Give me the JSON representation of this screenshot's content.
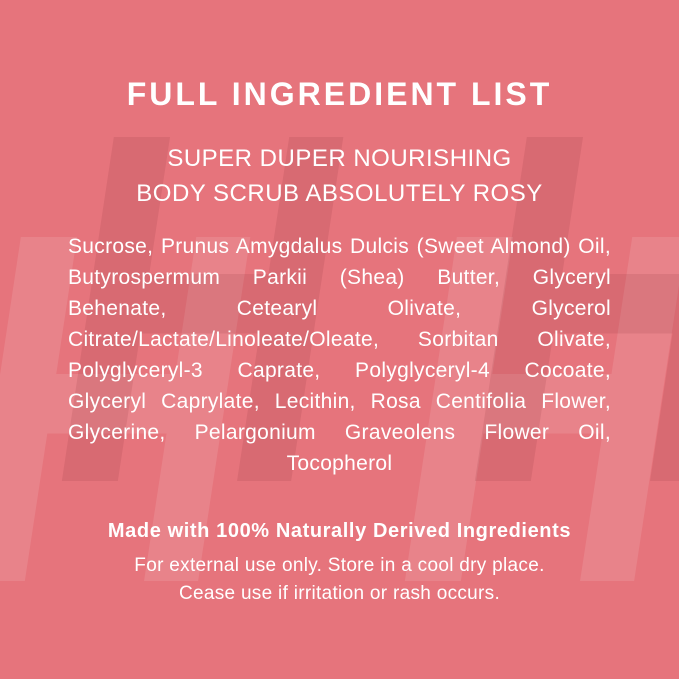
{
  "colors": {
    "background": "#e6747c",
    "text": "#ffffff",
    "watermark_dark": "rgba(95, 22, 32, 0.10)",
    "watermark_light": "rgba(255, 255, 255, 0.11)"
  },
  "watermark": {
    "letter": "H"
  },
  "header": {
    "title": "FULL INGREDIENT LIST",
    "subtitle_line1": "SUPER DUPER NOURISHING",
    "subtitle_line2": "BODY SCRUB ABSOLUTELY ROSY"
  },
  "ingredients": {
    "lines": [
      "Sucrose, Prunus Amygdalus Dulcis (Sweet Almond) Oil,",
      "Butyrospermum Parkii (Shea) Butter, Glyceryl",
      "Behenate, Cetearyl Olivate, Glycerol",
      "Citrate/Lactate/Linoleate/Oleate, Sorbitan Olivate,",
      "Polyglyceryl-3 Caprate, Polyglyceryl-4 Cocoate,",
      "Glyceryl Caprylate, Lecithin, Rosa Centifolia Flower,",
      "Glycerine, Pelargonium Graveolens Flower Oil,",
      "Tocopherol"
    ]
  },
  "footer": {
    "made_with": "Made with 100% Naturally Derived Ingredients",
    "care_line1": "For external use only. Store in a cool dry place.",
    "care_line2": "Cease use if irritation or rash occurs."
  }
}
